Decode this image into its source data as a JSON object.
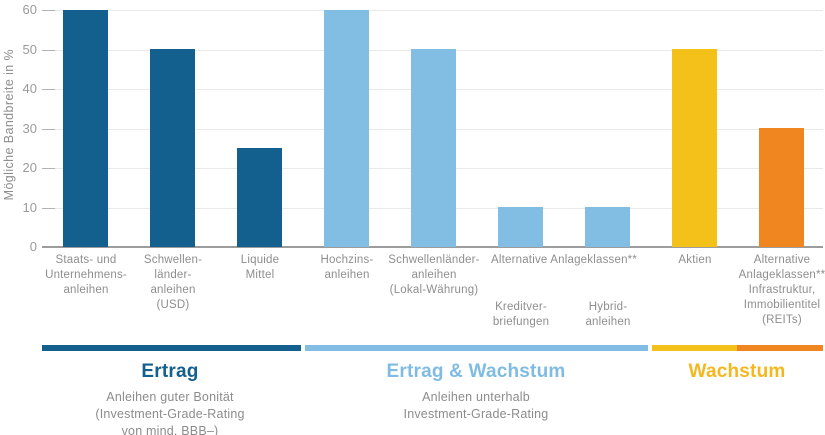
{
  "chart_data": {
    "type": "bar",
    "title": "",
    "ylabel": "Mögliche Bandbreite in %",
    "xlabel": "",
    "ylim": [
      0,
      60
    ],
    "yticks": [
      0,
      10,
      20,
      30,
      40,
      50,
      60
    ],
    "grid": true,
    "legend_position": "none",
    "bars": [
      {
        "label_lines": [
          "Staats- und",
          "Unternehmens-",
          "anleihen"
        ],
        "value": 60,
        "color": "#135f8e",
        "group": "Ertrag",
        "sub_label": false
      },
      {
        "label_lines": [
          "Schwellen-",
          "länder-",
          "anleihen",
          "(USD)"
        ],
        "value": 50,
        "color": "#135f8e",
        "group": "Ertrag",
        "sub_label": false
      },
      {
        "label_lines": [
          "Liquide",
          "Mittel"
        ],
        "value": 25,
        "color": "#135f8e",
        "group": "Ertrag",
        "sub_label": false
      },
      {
        "label_lines": [
          "Hochzins-",
          "anleihen"
        ],
        "value": 60,
        "color": "#82bee4",
        "group": "Ertrag & Wachstum",
        "sub_label": false
      },
      {
        "label_lines": [
          "Schwellenländer-",
          "anleihen",
          "(Lokal-Währung)"
        ],
        "value": 50,
        "color": "#82bee4",
        "group": "Ertrag & Wachstum",
        "sub_label": false
      },
      {
        "label_lines": [
          "Kreditver-",
          "briefungen"
        ],
        "value": 10,
        "color": "#82bee4",
        "group": "Ertrag & Wachstum",
        "sub_label": true
      },
      {
        "label_lines": [
          "Hybrid-",
          "anleihen"
        ],
        "value": 10,
        "color": "#82bee4",
        "group": "Ertrag & Wachstum",
        "sub_label": true
      },
      {
        "label_lines": [
          "Aktien"
        ],
        "value": 50,
        "color": "#f4c01a",
        "group": "Wachstum",
        "sub_label": false
      },
      {
        "label_lines": [
          "Alternative",
          "Anlageklassen**",
          "Infrastruktur,",
          "Immobilientitel",
          "(REITs)"
        ],
        "value": 30,
        "color": "#f0861f",
        "group": "Wachstum",
        "sub_label": false
      }
    ],
    "span_label": {
      "text": "Alternative Anlageklassen**",
      "over_bars": [
        5,
        6
      ]
    },
    "groups": [
      {
        "title": "Ertrag",
        "title_color": "#135f8e",
        "underline_colors": [
          "#135f8e"
        ],
        "subtitle_lines": [
          "Anleihen guter Bonität",
          "(Investment-Grade-Rating",
          "von mind. BBB–)"
        ]
      },
      {
        "title": "Ertrag & Wachstum",
        "title_color": "#7fbce3",
        "underline_colors": [
          "#82bee4"
        ],
        "subtitle_lines": [
          "Anleihen unterhalb",
          "Investment-Grade-Rating"
        ]
      },
      {
        "title": "Wachstum",
        "title_color": "#f4b81e",
        "underline_colors": [
          "#f4c01a",
          "#f0861f"
        ],
        "subtitle_lines": []
      }
    ]
  },
  "colors": {
    "dark_blue": "#135f8e",
    "light_blue": "#82bee4",
    "yellow": "#f4c01a",
    "orange": "#f0861f",
    "grid": "#e9e9e9",
    "axis": "#9c9c9c",
    "text_gray": "#8e8e8e"
  }
}
